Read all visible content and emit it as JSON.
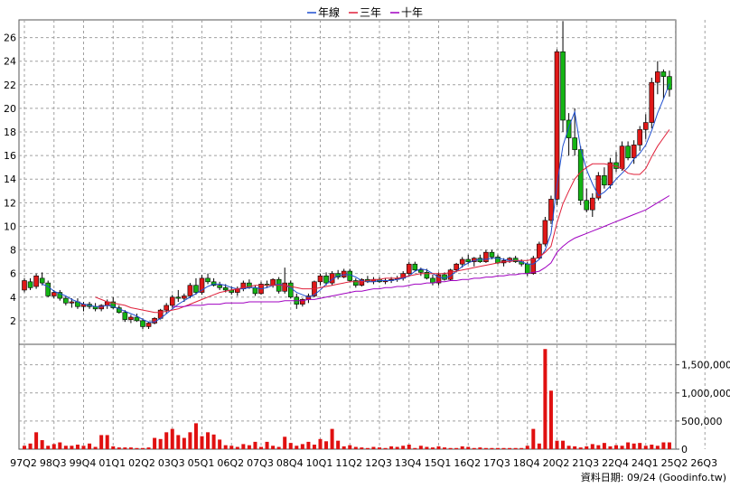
{
  "legend": [
    {
      "name": "年線",
      "color": "#1f4fd1"
    },
    {
      "name": "三年",
      "color": "#e0203a"
    },
    {
      "name": "十年",
      "color": "#a000c0"
    }
  ],
  "footer": "資料日期: 09/24  (Goodinfo.tw)",
  "colors": {
    "up": "#e01818",
    "down": "#14b414",
    "volume": "#e01010",
    "grid": "#a0a0a0"
  },
  "chart_data": {
    "type": "candlestick+volume",
    "price_axis": {
      "range": [
        0,
        27.5
      ],
      "ticks": [
        2,
        4,
        6,
        8,
        10,
        12,
        14,
        16,
        18,
        20,
        22,
        24,
        26
      ]
    },
    "volume_axis": {
      "range": [
        0,
        1800000
      ],
      "ticks": [
        0,
        500000,
        1000000,
        1500000
      ],
      "tick_labels": [
        "0",
        "500,000",
        "1,000,000",
        "1,500,000"
      ]
    },
    "x_labels": [
      "97Q2",
      "98Q3",
      "99Q4",
      "01Q1",
      "02Q2",
      "03Q3",
      "05Q1",
      "06Q2",
      "07Q3",
      "08Q4",
      "10Q1",
      "11Q2",
      "12Q3",
      "13Q4",
      "15Q1",
      "16Q2",
      "17Q3",
      "18Q4",
      "20Q2",
      "21Q3",
      "22Q4",
      "24Q1",
      "25Q2",
      "26Q3"
    ],
    "quarters_per_label": 5,
    "candles": [
      [
        4.6,
        5.6,
        4.4,
        5.4
      ],
      [
        5.3,
        5.6,
        4.6,
        4.8
      ],
      [
        4.9,
        6.0,
        4.7,
        5.8
      ],
      [
        5.6,
        6.1,
        5.0,
        5.2
      ],
      [
        5.2,
        5.4,
        4.0,
        4.1
      ],
      [
        4.1,
        4.6,
        3.9,
        4.4
      ],
      [
        4.4,
        4.6,
        3.7,
        3.9
      ],
      [
        3.9,
        4.1,
        3.3,
        3.5
      ],
      [
        3.5,
        3.9,
        3.1,
        3.6
      ],
      [
        3.6,
        3.9,
        3.0,
        3.2
      ],
      [
        3.2,
        3.6,
        2.8,
        3.4
      ],
      [
        3.4,
        3.6,
        3.0,
        3.2
      ],
      [
        3.2,
        3.5,
        2.8,
        3.0
      ],
      [
        3.0,
        3.4,
        2.8,
        3.3
      ],
      [
        3.3,
        3.8,
        3.0,
        3.6
      ],
      [
        3.6,
        4.0,
        3.0,
        3.1
      ],
      [
        3.1,
        3.3,
        2.6,
        2.7
      ],
      [
        2.7,
        2.9,
        1.9,
        2.1
      ],
      [
        2.1,
        2.5,
        1.8,
        2.3
      ],
      [
        2.3,
        2.6,
        1.9,
        2.0
      ],
      [
        2.0,
        2.2,
        1.3,
        1.5
      ],
      [
        1.5,
        1.9,
        1.3,
        1.8
      ],
      [
        1.8,
        2.3,
        1.7,
        2.2
      ],
      [
        2.2,
        3.0,
        2.1,
        2.9
      ],
      [
        2.9,
        3.5,
        2.6,
        3.3
      ],
      [
        3.3,
        4.2,
        3.1,
        4.0
      ],
      [
        4.0,
        4.6,
        3.6,
        3.9
      ],
      [
        3.9,
        4.3,
        3.6,
        4.1
      ],
      [
        4.1,
        5.2,
        3.9,
        5.0
      ],
      [
        5.0,
        5.6,
        4.2,
        4.4
      ],
      [
        4.4,
        5.9,
        4.2,
        5.6
      ],
      [
        5.6,
        6.0,
        5.1,
        5.3
      ],
      [
        5.3,
        5.6,
        4.9,
        5.0
      ],
      [
        5.0,
        5.3,
        4.6,
        4.8
      ],
      [
        4.8,
        5.1,
        4.4,
        4.6
      ],
      [
        4.6,
        4.9,
        4.2,
        4.4
      ],
      [
        4.4,
        4.9,
        4.1,
        4.7
      ],
      [
        4.7,
        5.4,
        4.5,
        5.2
      ],
      [
        5.2,
        5.5,
        4.7,
        4.8
      ],
      [
        4.8,
        5.0,
        4.1,
        4.3
      ],
      [
        4.3,
        5.3,
        4.2,
        5.1
      ],
      [
        5.1,
        5.4,
        4.8,
        5.0
      ],
      [
        5.0,
        5.6,
        4.8,
        5.5
      ],
      [
        5.5,
        5.7,
        4.3,
        4.5
      ],
      [
        4.5,
        6.5,
        4.3,
        5.2
      ],
      [
        5.2,
        5.4,
        3.9,
        4.0
      ],
      [
        4.0,
        4.3,
        3.0,
        3.4
      ],
      [
        3.4,
        3.9,
        3.2,
        3.8
      ],
      [
        3.8,
        4.3,
        3.5,
        4.1
      ],
      [
        4.1,
        5.4,
        4.0,
        5.3
      ],
      [
        5.3,
        6.0,
        5.0,
        5.8
      ],
      [
        5.8,
        6.1,
        5.0,
        5.2
      ],
      [
        5.2,
        6.2,
        5.0,
        6.0
      ],
      [
        6.0,
        6.3,
        5.5,
        5.7
      ],
      [
        5.7,
        6.4,
        5.6,
        6.2
      ],
      [
        6.2,
        6.4,
        5.3,
        5.4
      ],
      [
        5.4,
        5.6,
        4.8,
        5.0
      ],
      [
        5.0,
        5.6,
        4.9,
        5.5
      ],
      [
        5.5,
        5.8,
        5.2,
        5.3
      ],
      [
        5.3,
        5.7,
        5.1,
        5.5
      ],
      [
        5.5,
        5.7,
        5.2,
        5.3
      ],
      [
        5.3,
        5.6,
        5.1,
        5.4
      ],
      [
        5.4,
        5.7,
        5.2,
        5.5
      ],
      [
        5.5,
        5.8,
        5.3,
        5.6
      ],
      [
        5.6,
        6.2,
        5.4,
        6.0
      ],
      [
        6.0,
        7.0,
        5.8,
        6.8
      ],
      [
        6.8,
        7.0,
        6.2,
        6.3
      ],
      [
        6.3,
        6.5,
        5.8,
        6.1
      ],
      [
        6.1,
        6.4,
        5.5,
        5.6
      ],
      [
        5.6,
        5.9,
        5.0,
        5.2
      ],
      [
        5.2,
        6.1,
        5.0,
        5.9
      ],
      [
        5.9,
        6.1,
        5.4,
        5.5
      ],
      [
        5.5,
        6.4,
        5.4,
        6.3
      ],
      [
        6.3,
        6.9,
        6.1,
        6.8
      ],
      [
        6.8,
        7.4,
        6.5,
        7.2
      ],
      [
        7.2,
        7.6,
        6.8,
        7.0
      ],
      [
        7.0,
        7.4,
        6.6,
        7.3
      ],
      [
        7.3,
        7.6,
        6.9,
        7.0
      ],
      [
        7.0,
        8.0,
        6.9,
        7.8
      ],
      [
        7.8,
        8.0,
        7.2,
        7.4
      ],
      [
        7.4,
        7.6,
        6.8,
        6.9
      ],
      [
        6.9,
        7.3,
        6.6,
        7.1
      ],
      [
        7.1,
        7.4,
        6.9,
        7.3
      ],
      [
        7.3,
        7.5,
        6.9,
        7.0
      ],
      [
        7.0,
        7.2,
        6.6,
        6.8
      ],
      [
        6.8,
        7.0,
        5.8,
        6.0
      ],
      [
        6.0,
        7.5,
        5.9,
        7.3
      ],
      [
        7.3,
        8.7,
        7.2,
        8.5
      ],
      [
        8.5,
        10.8,
        8.3,
        10.5
      ],
      [
        10.5,
        12.6,
        10.2,
        12.3
      ],
      [
        12.3,
        25.0,
        11.8,
        24.8
      ],
      [
        24.8,
        27.4,
        18.0,
        19.0
      ],
      [
        19.0,
        19.6,
        16.0,
        17.5
      ],
      [
        17.5,
        20.0,
        16.0,
        16.5
      ],
      [
        16.5,
        16.8,
        11.8,
        12.2
      ],
      [
        12.2,
        13.2,
        11.2,
        11.4
      ],
      [
        11.4,
        12.8,
        10.8,
        12.4
      ],
      [
        12.4,
        14.6,
        12.2,
        14.3
      ],
      [
        14.3,
        15.0,
        13.2,
        13.5
      ],
      [
        13.5,
        15.8,
        13.2,
        15.4
      ],
      [
        15.4,
        16.3,
        14.6,
        14.9
      ],
      [
        14.9,
        17.2,
        14.7,
        16.8
      ],
      [
        16.8,
        17.2,
        15.6,
        15.8
      ],
      [
        15.8,
        17.3,
        15.3,
        16.9
      ],
      [
        16.9,
        18.5,
        16.4,
        18.2
      ],
      [
        18.2,
        19.5,
        17.4,
        18.8
      ],
      [
        18.8,
        22.6,
        18.3,
        22.2
      ],
      [
        22.2,
        24.0,
        21.2,
        23.1
      ],
      [
        23.1,
        23.3,
        20.8,
        22.7
      ],
      [
        22.7,
        23.2,
        21.0,
        21.6
      ]
    ],
    "volume": [
      60000,
      100000,
      300000,
      160000,
      60000,
      90000,
      120000,
      60000,
      60000,
      80000,
      60000,
      100000,
      40000,
      250000,
      250000,
      50000,
      30000,
      30000,
      30000,
      20000,
      20000,
      30000,
      200000,
      180000,
      300000,
      360000,
      250000,
      200000,
      300000,
      460000,
      230000,
      300000,
      260000,
      170000,
      70000,
      60000,
      40000,
      90000,
      70000,
      130000,
      40000,
      130000,
      60000,
      40000,
      220000,
      110000,
      60000,
      90000,
      130000,
      80000,
      180000,
      140000,
      360000,
      150000,
      50000,
      70000,
      40000,
      30000,
      20000,
      40000,
      30000,
      20000,
      50000,
      40000,
      60000,
      80000,
      20000,
      60000,
      40000,
      30000,
      50000,
      30000,
      20000,
      20000,
      50000,
      40000,
      20000,
      30000,
      20000,
      20000,
      20000,
      20000,
      20000,
      20000,
      20000,
      60000,
      360000,
      100000,
      1780000,
      1040000,
      150000,
      150000,
      60000,
      50000,
      30000,
      50000,
      90000,
      70000,
      110000,
      50000,
      70000,
      60000,
      120000,
      100000,
      110000,
      60000,
      80000,
      60000,
      120000,
      120000
    ],
    "series": [
      {
        "name": "年線",
        "values": [
          null,
          null,
          null,
          5.1,
          4.9,
          4.5,
          4.3,
          4.1,
          3.8,
          3.6,
          3.4,
          3.3,
          3.2,
          3.2,
          3.3,
          3.2,
          3.0,
          2.8,
          2.6,
          2.4,
          2.1,
          1.9,
          1.9,
          2.2,
          2.6,
          3.0,
          3.4,
          3.7,
          4.0,
          4.3,
          4.6,
          4.9,
          5.1,
          5.1,
          5.0,
          4.8,
          4.7,
          4.7,
          4.8,
          4.8,
          4.7,
          4.8,
          5.0,
          5.1,
          5.0,
          4.8,
          4.4,
          4.2,
          4.0,
          4.2,
          4.6,
          5.1,
          5.5,
          5.8,
          5.9,
          5.9,
          5.7,
          5.4,
          5.3,
          5.3,
          5.4,
          5.4,
          5.4,
          5.5,
          5.6,
          5.8,
          6.2,
          6.4,
          6.3,
          6.0,
          5.7,
          5.6,
          5.8,
          6.2,
          6.6,
          6.9,
          7.1,
          7.2,
          7.2,
          7.3,
          7.3,
          7.2,
          7.1,
          7.1,
          7.0,
          6.8,
          6.8,
          7.2,
          8.0,
          9.4,
          13.5,
          16.8,
          18.4,
          19.7,
          16.6,
          14.8,
          13.6,
          12.6,
          12.9,
          13.4,
          14.0,
          14.5,
          15.0,
          15.7,
          16.2,
          16.9,
          18.1,
          19.6,
          20.8,
          22.1
        ]
      },
      {
        "name": "三年",
        "values": [
          null,
          null,
          null,
          null,
          null,
          null,
          null,
          null,
          null,
          null,
          null,
          null,
          4.0,
          3.8,
          3.6,
          3.5,
          3.4,
          3.3,
          3.1,
          3.0,
          2.9,
          2.8,
          2.7,
          2.7,
          2.8,
          2.9,
          3.0,
          3.2,
          3.4,
          3.6,
          3.8,
          4.0,
          4.2,
          4.4,
          4.5,
          4.6,
          4.7,
          4.8,
          4.9,
          5.0,
          5.0,
          5.0,
          5.0,
          5.0,
          5.0,
          4.9,
          4.8,
          4.7,
          4.7,
          4.7,
          4.8,
          4.9,
          5.0,
          5.1,
          5.2,
          5.3,
          5.3,
          5.3,
          5.4,
          5.5,
          5.5,
          5.6,
          5.6,
          5.6,
          5.7,
          5.8,
          5.9,
          6.0,
          6.0,
          6.0,
          6.0,
          6.0,
          6.1,
          6.2,
          6.3,
          6.4,
          6.5,
          6.6,
          6.7,
          6.8,
          6.9,
          7.0,
          7.0,
          7.1,
          7.1,
          7.1,
          7.2,
          7.4,
          7.8,
          8.3,
          10.3,
          11.9,
          13.0,
          14.0,
          14.6,
          15.0,
          15.3,
          15.3,
          15.3,
          15.2,
          15.1,
          14.9,
          14.5,
          14.4,
          14.4,
          14.9,
          15.9,
          16.8,
          17.5,
          18.2
        ]
      },
      {
        "name": "十年",
        "values": [
          null,
          null,
          null,
          null,
          null,
          null,
          null,
          null,
          null,
          null,
          null,
          null,
          null,
          null,
          null,
          null,
          null,
          null,
          null,
          null,
          null,
          null,
          null,
          null,
          null,
          3.2,
          3.2,
          3.2,
          3.3,
          3.3,
          3.3,
          3.4,
          3.4,
          3.4,
          3.5,
          3.5,
          3.5,
          3.5,
          3.6,
          3.6,
          3.6,
          3.6,
          3.6,
          3.6,
          3.7,
          3.7,
          3.7,
          3.7,
          3.8,
          3.8,
          3.9,
          4.0,
          4.1,
          4.2,
          4.3,
          4.4,
          4.5,
          4.5,
          4.6,
          4.7,
          4.7,
          4.8,
          4.8,
          4.9,
          4.9,
          5.0,
          5.1,
          5.1,
          5.2,
          5.2,
          5.3,
          5.3,
          5.4,
          5.4,
          5.5,
          5.5,
          5.6,
          5.6,
          5.7,
          5.7,
          5.8,
          5.8,
          5.9,
          5.9,
          6.0,
          6.0,
          6.1,
          6.2,
          6.5,
          6.9,
          7.8,
          8.3,
          8.7,
          9.0,
          9.2,
          9.4,
          9.6,
          9.8,
          10.0,
          10.2,
          10.4,
          10.6,
          10.8,
          11.0,
          11.2,
          11.4,
          11.7,
          12.0,
          12.3,
          12.6
        ]
      }
    ]
  }
}
